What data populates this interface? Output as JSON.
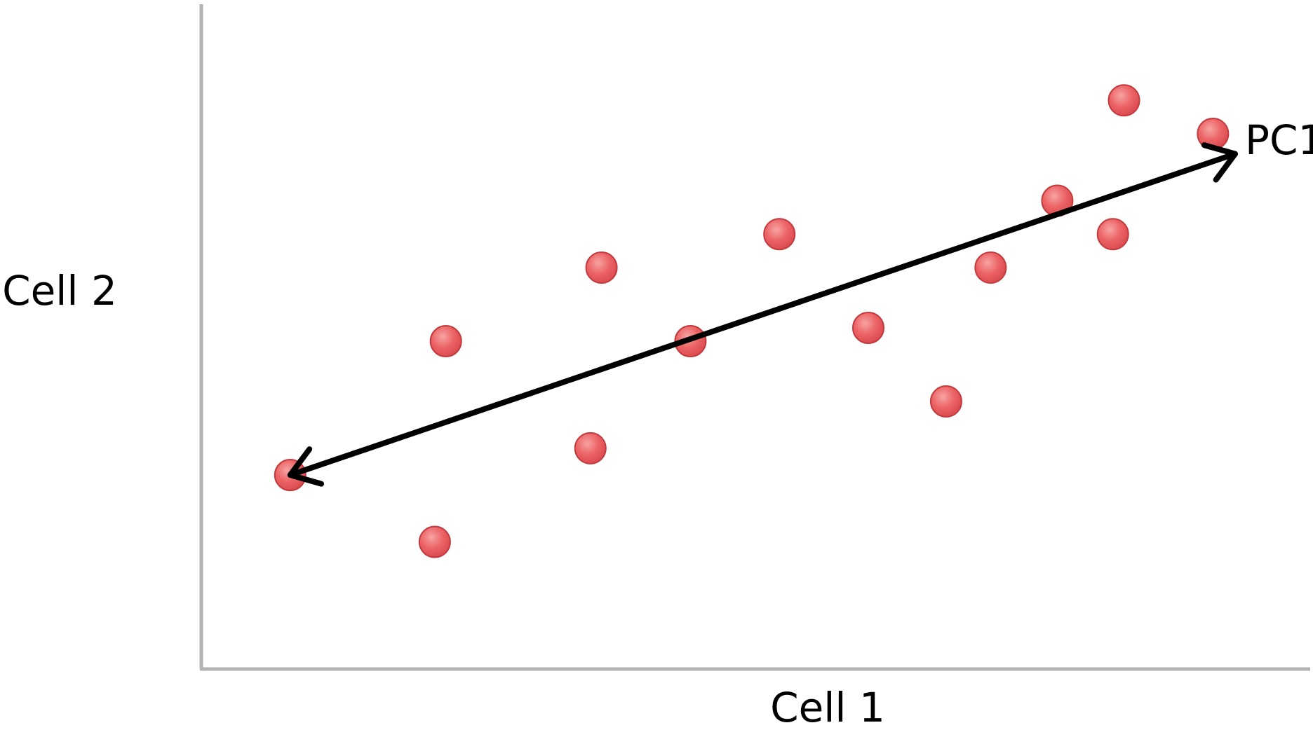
{
  "chart_data": {
    "type": "scatter",
    "title": "",
    "xlabel": "Cell 1",
    "ylabel": "Cell 2",
    "xlim": [
      0,
      1
    ],
    "ylim": [
      0,
      1
    ],
    "grid": false,
    "ticks": false,
    "series": [
      {
        "points": [
          {
            "x": 0.08,
            "y": 0.29
          },
          {
            "x": 0.21,
            "y": 0.19
          },
          {
            "x": 0.22,
            "y": 0.49
          },
          {
            "x": 0.35,
            "y": 0.33
          },
          {
            "x": 0.36,
            "y": 0.6
          },
          {
            "x": 0.44,
            "y": 0.49
          },
          {
            "x": 0.52,
            "y": 0.65
          },
          {
            "x": 0.6,
            "y": 0.51
          },
          {
            "x": 0.67,
            "y": 0.4
          },
          {
            "x": 0.71,
            "y": 0.6
          },
          {
            "x": 0.77,
            "y": 0.7
          },
          {
            "x": 0.82,
            "y": 0.65
          },
          {
            "x": 0.83,
            "y": 0.85
          },
          {
            "x": 0.91,
            "y": 0.8
          }
        ]
      }
    ],
    "annotations": [
      {
        "type": "double-arrow",
        "label": "PC1",
        "from": {
          "x": 0.08,
          "y": 0.29
        },
        "to": {
          "x": 0.93,
          "y": 0.77
        }
      }
    ]
  },
  "colors": {
    "point_fill": "#e8575a",
    "point_stroke": "#c23b3f",
    "axis": "#b3b3b3",
    "arrow": "#000000",
    "text": "#000000"
  }
}
